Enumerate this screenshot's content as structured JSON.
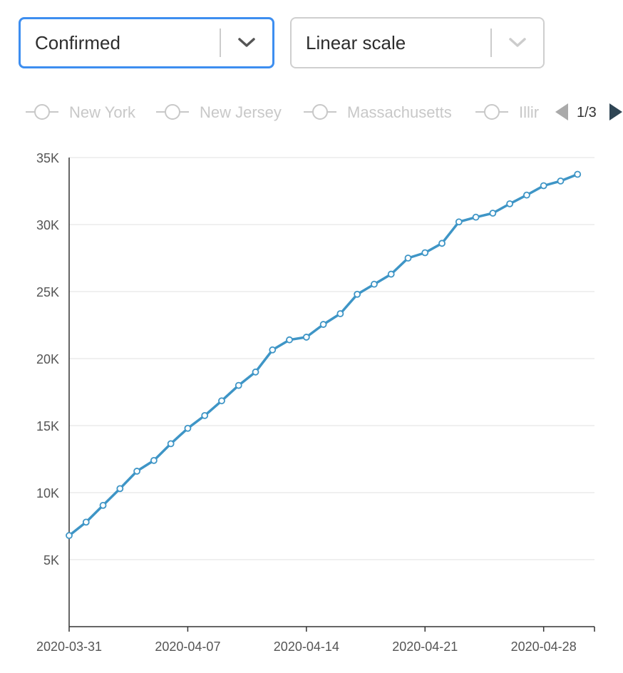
{
  "controls": {
    "metric_select": {
      "value": "Confirmed",
      "icon": "chevron-down-icon",
      "color": "#3d8ef0"
    },
    "scale_select": {
      "value": "Linear scale",
      "icon": "chevron-down-icon",
      "disabled": true
    }
  },
  "legend": {
    "items": [
      "New York",
      "New Jersey",
      "Massachusetts",
      "Illir"
    ],
    "page_label": "1/3",
    "prev_icon": "caret-left-icon",
    "next_icon": "caret-right-icon",
    "inactive_color": "#c8c8c8"
  },
  "chart_data": {
    "type": "line",
    "xlabel": "",
    "ylabel": "",
    "x_tick_labels": [
      "2020-03-31",
      "2020-04-07",
      "2020-04-14",
      "2020-04-21",
      "2020-04-28"
    ],
    "y_tick_labels": [
      "5K",
      "10K",
      "15K",
      "20K",
      "25K",
      "30K",
      "35K"
    ],
    "y_ticks": [
      5000,
      10000,
      15000,
      20000,
      25000,
      30000,
      35000
    ],
    "ylim": [
      0,
      35000
    ],
    "grid": true,
    "series": [
      {
        "color": "#3e95c6",
        "x": [
          "2020-03-31",
          "2020-04-01",
          "2020-04-02",
          "2020-04-03",
          "2020-04-04",
          "2020-04-05",
          "2020-04-06",
          "2020-04-07",
          "2020-04-08",
          "2020-04-09",
          "2020-04-10",
          "2020-04-11",
          "2020-04-12",
          "2020-04-13",
          "2020-04-14",
          "2020-04-15",
          "2020-04-16",
          "2020-04-17",
          "2020-04-18",
          "2020-04-19",
          "2020-04-20",
          "2020-04-21",
          "2020-04-22",
          "2020-04-23",
          "2020-04-24",
          "2020-04-25",
          "2020-04-26",
          "2020-04-27",
          "2020-04-28",
          "2020-04-29",
          "2020-04-30"
        ],
        "values": [
          6800,
          7800,
          9050,
          10300,
          11600,
          12400,
          13650,
          14800,
          15750,
          16850,
          18000,
          19000,
          20650,
          21400,
          21600,
          22550,
          23350,
          24800,
          25550,
          26300,
          27500,
          27900,
          28600,
          30200,
          30550,
          30850,
          31550,
          32200,
          32900,
          33250,
          33750
        ]
      }
    ]
  }
}
